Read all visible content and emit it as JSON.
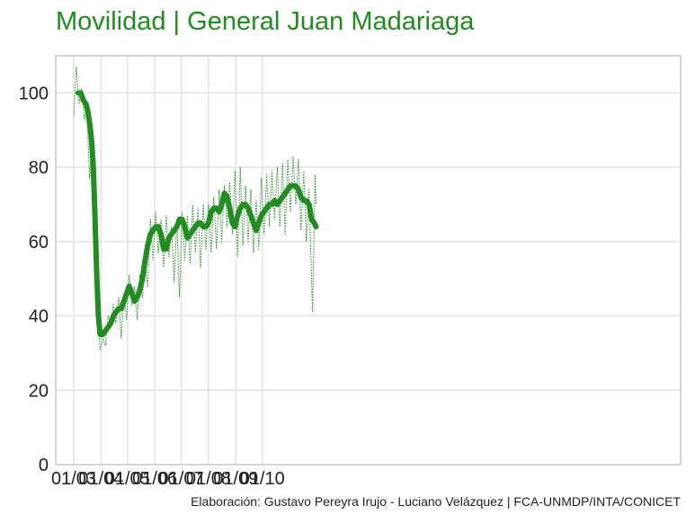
{
  "title": "Movilidad | General Juan Madariaga",
  "caption": "Elaboración: Gustavo Pereyra Irujo - Luciano Velázquez | FCA-UNMDP/INTA/CONICET",
  "colors": {
    "line": "#228B22",
    "grid": "#e3e3e3",
    "axis": "#c8c8c8",
    "text": "#222222"
  },
  "chart_data": {
    "type": "line",
    "title": "Movilidad | General Juan Madariaga",
    "xlabel": "",
    "ylabel": "",
    "ylim": [
      0,
      110
    ],
    "x_ticks": [
      "01/03",
      "01/04",
      "01/05",
      "01/06",
      "01/07",
      "01/08",
      "01/09",
      "01/10"
    ],
    "y_ticks": [
      0,
      20,
      40,
      60,
      80,
      100
    ],
    "grid": true,
    "legend": "none",
    "series": [
      {
        "style": "daily-dotted",
        "points": [
          [
            "2020-03-01",
            94
          ],
          [
            "2020-03-04",
            107
          ],
          [
            "2020-03-07",
            97
          ],
          [
            "2020-03-10",
            101
          ],
          [
            "2020-03-13",
            93
          ],
          [
            "2020-03-16",
            96
          ],
          [
            "2020-03-19",
            77
          ],
          [
            "2020-03-22",
            90
          ],
          [
            "2020-03-25",
            68
          ],
          [
            "2020-03-28",
            40
          ],
          [
            "2020-03-31",
            31
          ],
          [
            "2020-04-03",
            34
          ],
          [
            "2020-04-06",
            32
          ],
          [
            "2020-04-09",
            40
          ],
          [
            "2020-04-12",
            37
          ],
          [
            "2020-04-15",
            43
          ],
          [
            "2020-04-18",
            38
          ],
          [
            "2020-04-21",
            45
          ],
          [
            "2020-04-24",
            34
          ],
          [
            "2020-04-27",
            46
          ],
          [
            "2020-04-30",
            39
          ],
          [
            "2020-05-03",
            51
          ],
          [
            "2020-05-06",
            43
          ],
          [
            "2020-05-09",
            48
          ],
          [
            "2020-05-12",
            39
          ],
          [
            "2020-05-15",
            51
          ],
          [
            "2020-05-18",
            45
          ],
          [
            "2020-05-21",
            54
          ],
          [
            "2020-05-24",
            48
          ],
          [
            "2020-05-27",
            66
          ],
          [
            "2020-05-30",
            55
          ],
          [
            "2020-06-02",
            68
          ],
          [
            "2020-06-05",
            57
          ],
          [
            "2020-06-08",
            66
          ],
          [
            "2020-06-11",
            53
          ],
          [
            "2020-06-14",
            67
          ],
          [
            "2020-06-17",
            56
          ],
          [
            "2020-06-20",
            64
          ],
          [
            "2020-06-23",
            49
          ],
          [
            "2020-06-26",
            66
          ],
          [
            "2020-06-29",
            45
          ],
          [
            "2020-07-02",
            68
          ],
          [
            "2020-07-05",
            55
          ],
          [
            "2020-07-08",
            67
          ],
          [
            "2020-07-11",
            54
          ],
          [
            "2020-07-14",
            70
          ],
          [
            "2020-07-17",
            57
          ],
          [
            "2020-07-20",
            69
          ],
          [
            "2020-07-23",
            53
          ],
          [
            "2020-07-26",
            70
          ],
          [
            "2020-07-29",
            58
          ],
          [
            "2020-08-01",
            70
          ],
          [
            "2020-08-04",
            57
          ],
          [
            "2020-08-07",
            72
          ],
          [
            "2020-08-10",
            58
          ],
          [
            "2020-08-13",
            74
          ],
          [
            "2020-08-16",
            60
          ],
          [
            "2020-08-19",
            75
          ],
          [
            "2020-08-22",
            64
          ],
          [
            "2020-08-25",
            76
          ],
          [
            "2020-08-28",
            62
          ],
          [
            "2020-08-31",
            79
          ],
          [
            "2020-09-03",
            56
          ],
          [
            "2020-09-06",
            80
          ],
          [
            "2020-09-09",
            59
          ],
          [
            "2020-09-12",
            75
          ],
          [
            "2020-09-15",
            60
          ],
          [
            "2020-09-18",
            74
          ],
          [
            "2020-09-21",
            57
          ],
          [
            "2020-09-24",
            71
          ],
          [
            "2020-09-27",
            58
          ],
          [
            "2020-09-30",
            77
          ],
          [
            "2020-10-03",
            62
          ],
          [
            "2020-10-06",
            78
          ],
          [
            "2020-10-09",
            64
          ],
          [
            "2020-10-12",
            79
          ],
          [
            "2020-10-15",
            66
          ],
          [
            "2020-10-18",
            80
          ],
          [
            "2020-10-21",
            64
          ],
          [
            "2020-10-24",
            81
          ],
          [
            "2020-10-27",
            62
          ],
          [
            "2020-10-30",
            82
          ],
          [
            "2020-11-02",
            68
          ],
          [
            "2020-11-05",
            83
          ],
          [
            "2020-11-08",
            70
          ],
          [
            "2020-11-11",
            82
          ],
          [
            "2020-11-14",
            63
          ],
          [
            "2020-11-17",
            79
          ],
          [
            "2020-11-20",
            60
          ],
          [
            "2020-11-23",
            74
          ],
          [
            "2020-11-27",
            41
          ],
          [
            "2020-11-30",
            78
          ],
          [
            "2020-12-01",
            70
          ]
        ]
      },
      {
        "style": "smoothed",
        "points": [
          [
            "2020-03-06",
            100
          ],
          [
            "2020-03-09",
            100
          ],
          [
            "2020-03-12",
            98
          ],
          [
            "2020-03-15",
            97
          ],
          [
            "2020-03-17",
            95
          ],
          [
            "2020-03-19",
            92
          ],
          [
            "2020-03-21",
            88
          ],
          [
            "2020-03-23",
            81
          ],
          [
            "2020-03-25",
            68
          ],
          [
            "2020-03-27",
            52
          ],
          [
            "2020-03-29",
            40
          ],
          [
            "2020-03-31",
            35
          ],
          [
            "2020-04-03",
            35
          ],
          [
            "2020-04-06",
            36
          ],
          [
            "2020-04-09",
            37
          ],
          [
            "2020-04-12",
            38
          ],
          [
            "2020-04-15",
            40
          ],
          [
            "2020-04-18",
            41
          ],
          [
            "2020-04-21",
            42
          ],
          [
            "2020-04-24",
            42
          ],
          [
            "2020-04-27",
            44
          ],
          [
            "2020-04-30",
            46
          ],
          [
            "2020-05-03",
            48
          ],
          [
            "2020-05-06",
            46
          ],
          [
            "2020-05-09",
            44
          ],
          [
            "2020-05-12",
            45
          ],
          [
            "2020-05-15",
            47
          ],
          [
            "2020-05-18",
            50
          ],
          [
            "2020-05-21",
            55
          ],
          [
            "2020-05-24",
            59
          ],
          [
            "2020-05-27",
            62
          ],
          [
            "2020-05-30",
            63
          ],
          [
            "2020-06-02",
            64
          ],
          [
            "2020-06-05",
            64
          ],
          [
            "2020-06-08",
            62
          ],
          [
            "2020-06-11",
            58
          ],
          [
            "2020-06-14",
            58
          ],
          [
            "2020-06-17",
            61
          ],
          [
            "2020-06-20",
            62
          ],
          [
            "2020-06-23",
            63
          ],
          [
            "2020-06-26",
            64
          ],
          [
            "2020-06-29",
            66
          ],
          [
            "2020-07-02",
            66
          ],
          [
            "2020-07-05",
            64
          ],
          [
            "2020-07-08",
            61
          ],
          [
            "2020-07-11",
            62
          ],
          [
            "2020-07-14",
            63
          ],
          [
            "2020-07-17",
            64
          ],
          [
            "2020-07-20",
            65
          ],
          [
            "2020-07-23",
            65
          ],
          [
            "2020-07-26",
            64
          ],
          [
            "2020-07-29",
            64
          ],
          [
            "2020-08-01",
            65
          ],
          [
            "2020-08-04",
            68
          ],
          [
            "2020-08-07",
            69
          ],
          [
            "2020-08-10",
            69
          ],
          [
            "2020-08-13",
            68
          ],
          [
            "2020-08-16",
            70
          ],
          [
            "2020-08-19",
            73
          ],
          [
            "2020-08-22",
            72
          ],
          [
            "2020-08-25",
            69
          ],
          [
            "2020-08-28",
            65
          ],
          [
            "2020-08-31",
            64
          ],
          [
            "2020-09-03",
            67
          ],
          [
            "2020-09-06",
            69
          ],
          [
            "2020-09-09",
            70
          ],
          [
            "2020-09-12",
            70
          ],
          [
            "2020-09-15",
            69
          ],
          [
            "2020-09-18",
            67
          ],
          [
            "2020-09-21",
            65
          ],
          [
            "2020-09-24",
            63
          ],
          [
            "2020-09-27",
            65
          ],
          [
            "2020-09-30",
            67
          ],
          [
            "2020-10-03",
            68
          ],
          [
            "2020-10-06",
            69
          ],
          [
            "2020-10-09",
            70
          ],
          [
            "2020-10-12",
            70
          ],
          [
            "2020-10-15",
            71
          ],
          [
            "2020-10-18",
            70
          ],
          [
            "2020-10-21",
            71
          ],
          [
            "2020-10-24",
            72
          ],
          [
            "2020-10-27",
            73
          ],
          [
            "2020-10-30",
            74
          ],
          [
            "2020-11-02",
            75
          ],
          [
            "2020-11-05",
            75
          ],
          [
            "2020-11-08",
            75
          ],
          [
            "2020-11-11",
            74
          ],
          [
            "2020-11-14",
            72
          ],
          [
            "2020-11-17",
            71
          ],
          [
            "2020-11-20",
            71
          ],
          [
            "2020-11-23",
            70
          ],
          [
            "2020-11-26",
            66
          ],
          [
            "2020-11-29",
            65
          ],
          [
            "2020-12-01",
            64
          ]
        ]
      }
    ]
  }
}
